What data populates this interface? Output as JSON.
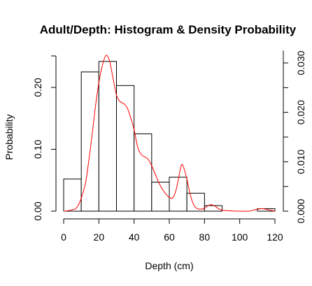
{
  "chart_data": {
    "type": "bar",
    "title": "Adult/Depth: Histogram & Density Probability",
    "xlabel": "Depth (cm)",
    "ylabel": "Probability",
    "xlim": [
      0,
      120
    ],
    "ylim": [
      0,
      0.25
    ],
    "y2lim": [
      0,
      0.0325
    ],
    "x_ticks": [
      0,
      20,
      40,
      60,
      80,
      100,
      120
    ],
    "y_ticks": [
      0.0,
      0.1,
      0.2
    ],
    "y_tick_labels": [
      "0.00",
      "0.10",
      "0.20"
    ],
    "y2_ticks": [
      0.0,
      0.005,
      0.01,
      0.015,
      0.02,
      0.025,
      0.03
    ],
    "y2_tick_labels": [
      "0.000",
      "",
      "0.010",
      "",
      "0.020",
      "",
      "0.030"
    ],
    "histogram": {
      "bin_edges": [
        0,
        10,
        20,
        30,
        40,
        50,
        60,
        70,
        80,
        90,
        100,
        110,
        120
      ],
      "values": [
        0.052,
        0.225,
        0.242,
        0.203,
        0.125,
        0.047,
        0.055,
        0.029,
        0.009,
        0.0,
        0.0,
        0.004
      ],
      "fill": "#ffffff",
      "edge": "#000000"
    },
    "density": {
      "color": "#ff0000",
      "x": [
        0,
        4,
        8,
        12,
        14,
        16,
        18,
        20,
        22,
        24,
        26,
        28,
        30,
        32,
        34,
        36,
        38,
        40,
        42,
        44,
        46,
        48,
        50,
        52,
        54,
        56,
        58,
        60,
        62,
        64,
        66,
        67,
        68,
        70,
        72,
        74,
        76,
        78,
        80,
        82,
        84,
        86,
        88,
        90,
        95,
        100,
        105,
        108,
        110,
        113,
        116,
        120
      ],
      "y": [
        0.0,
        0.0002,
        0.001,
        0.005,
        0.0095,
        0.015,
        0.021,
        0.026,
        0.0295,
        0.0315,
        0.0305,
        0.027,
        0.0235,
        0.0222,
        0.0218,
        0.021,
        0.019,
        0.0165,
        0.013,
        0.0115,
        0.011,
        0.0105,
        0.0092,
        0.0075,
        0.0058,
        0.0045,
        0.0035,
        0.0028,
        0.0027,
        0.0045,
        0.008,
        0.0094,
        0.009,
        0.0065,
        0.0032,
        0.0012,
        0.0005,
        0.0004,
        0.0006,
        0.0011,
        0.0013,
        0.001,
        0.0005,
        0.0002,
        5e-05,
        0.0,
        0.0,
        0.0002,
        0.0004,
        0.0005,
        0.0003,
        0.0
      ]
    }
  }
}
